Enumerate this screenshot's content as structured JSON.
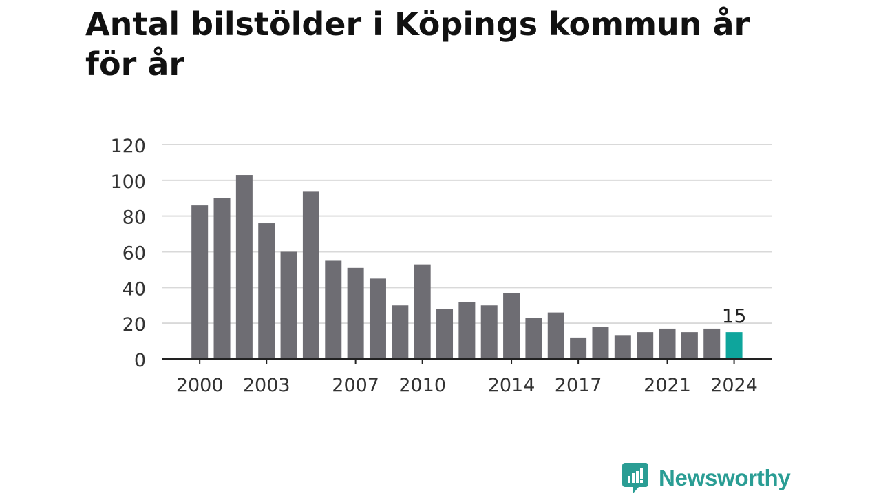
{
  "title": "Antal bilstölder i Köpings kommun år för år",
  "brand": {
    "name": "Newsworthy",
    "color": "#2a9d94",
    "icon": "newsworthy-bar-chart-speech-bubble-icon"
  },
  "colors": {
    "bar": "#6e6d73",
    "highlight": "#0ea59c",
    "grid": "#d9d9d9",
    "axis": "#222222",
    "text": "#333333"
  },
  "chart_data": {
    "type": "bar",
    "title": "Antal bilstölder i Köpings kommun år för år",
    "xlabel": "",
    "ylabel": "",
    "ylim": [
      0,
      120
    ],
    "yticks": [
      0,
      20,
      40,
      60,
      80,
      100,
      120
    ],
    "categories": [
      2000,
      2001,
      2002,
      2003,
      2004,
      2005,
      2006,
      2007,
      2008,
      2009,
      2010,
      2011,
      2012,
      2013,
      2014,
      2015,
      2016,
      2017,
      2018,
      2019,
      2020,
      2021,
      2022,
      2023,
      2024
    ],
    "xtick_labels": [
      "2000",
      "2003",
      "2007",
      "2010",
      "2014",
      "2017",
      "2021",
      "2024"
    ],
    "values": [
      86,
      90,
      103,
      76,
      60,
      94,
      55,
      51,
      45,
      30,
      53,
      28,
      32,
      30,
      37,
      23,
      26,
      12,
      18,
      13,
      15,
      17,
      15,
      17,
      15
    ],
    "highlight_category": 2024,
    "data_labels": [
      {
        "category": 2024,
        "text": "15"
      }
    ],
    "grid": true,
    "legend": "none"
  }
}
